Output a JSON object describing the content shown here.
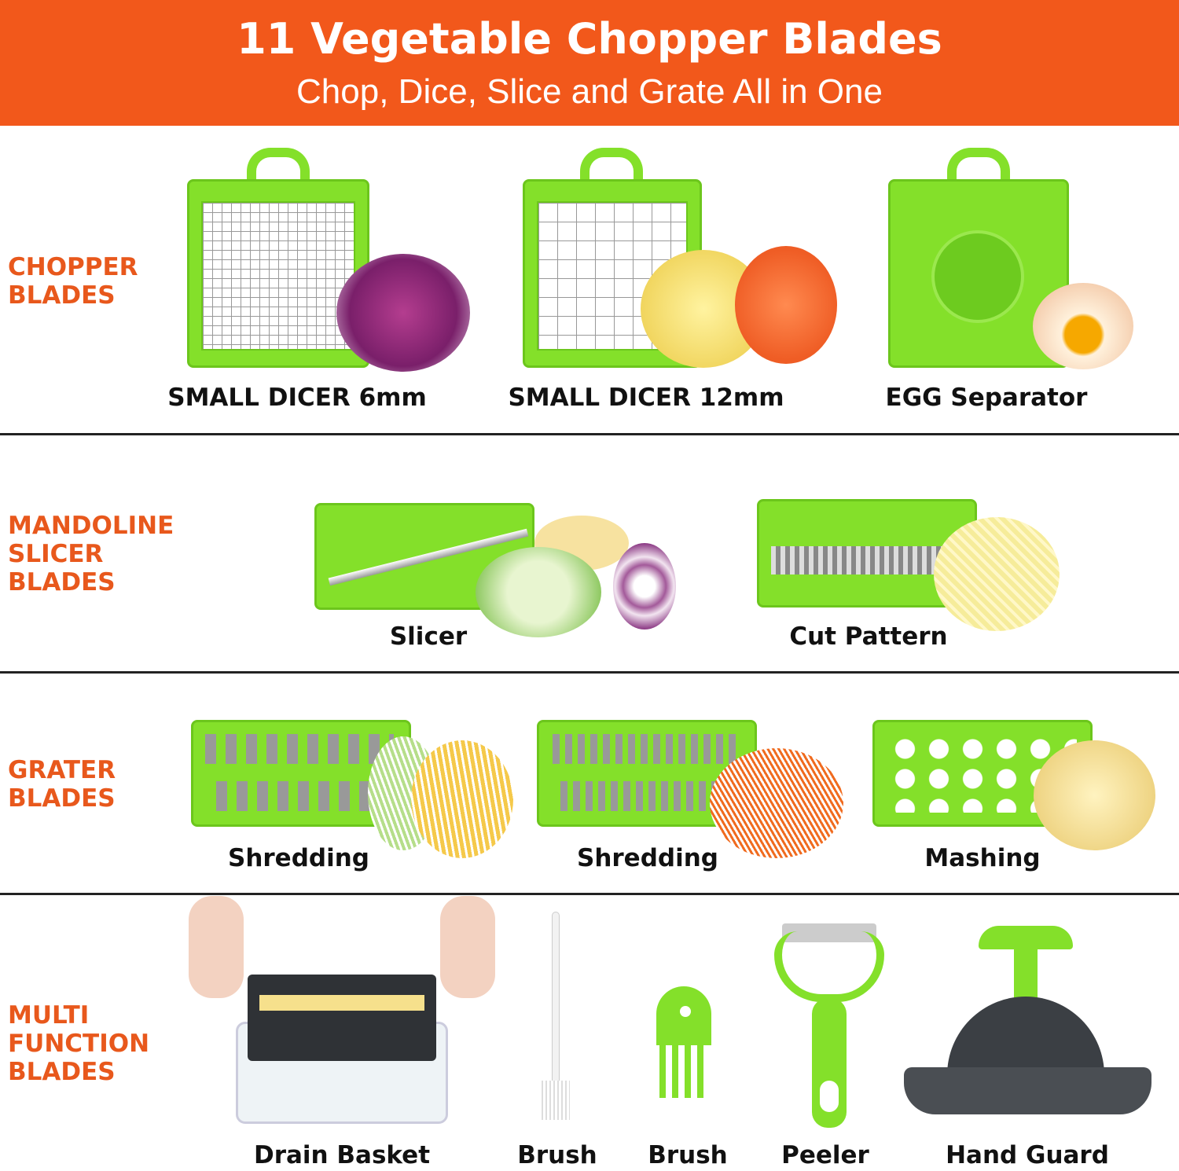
{
  "header": {
    "title": "11 Vegetable Chopper Blades",
    "subtitle": "Chop, Dice, Slice and Grate All in One",
    "background_color": "#F2581B"
  },
  "accent_color": "#E8581C",
  "blade_color": "#84E02A",
  "sections": [
    {
      "label": "CHOPPER\nBLADES",
      "items": [
        "SMALL DICER 6mm",
        "SMALL DICER 12mm",
        "EGG Separator"
      ]
    },
    {
      "label": "MANDOLINE\nSLICER\nBLADES",
      "items": [
        "Slicer",
        "Cut Pattern"
      ]
    },
    {
      "label": "GRATER\nBLADES",
      "items": [
        "Shredding",
        "Shredding",
        "Mashing"
      ]
    },
    {
      "label": "MULTI\nFUNCTION\nBLADES",
      "items": [
        "Drain Basket",
        "Brush",
        "Brush",
        "Peeler",
        "Hand Guard"
      ]
    }
  ]
}
